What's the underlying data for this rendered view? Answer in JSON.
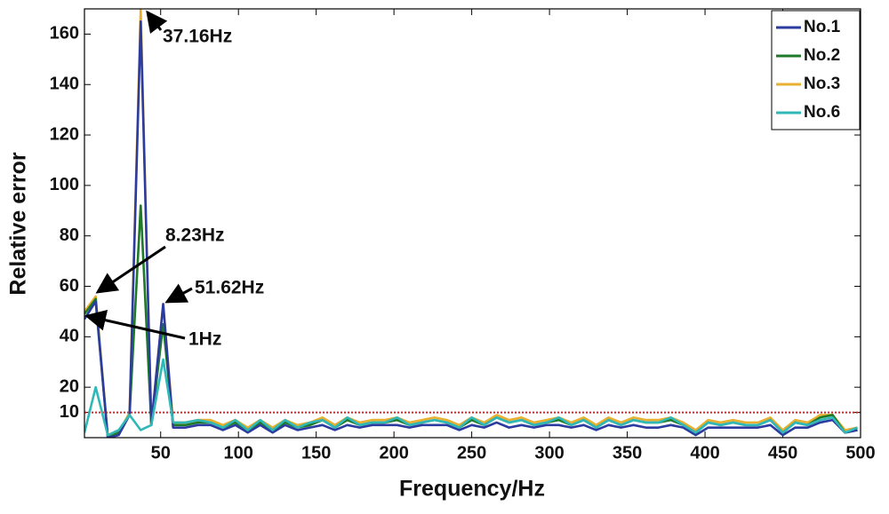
{
  "chart_data": {
    "type": "line",
    "x_label": "Frequency/Hz",
    "y_label": "Relative error",
    "xlim": [
      1,
      500
    ],
    "ylim": [
      0,
      170
    ],
    "xticks": [
      50,
      100,
      150,
      200,
      250,
      300,
      350,
      400,
      450,
      500
    ],
    "yticks": [
      10,
      20,
      40,
      60,
      80,
      100,
      120,
      140,
      160
    ],
    "legend": "upper right",
    "reference_line": {
      "value": 10,
      "color": "#e02020"
    },
    "x": [
      1,
      8.23,
      16,
      23,
      30,
      37.16,
      44,
      51.62,
      58,
      66,
      74,
      82,
      90,
      98,
      106,
      114,
      122,
      130,
      138,
      146,
      154,
      162,
      170,
      178,
      186,
      194,
      202,
      210,
      218,
      226,
      234,
      242,
      250,
      258,
      266,
      274,
      282,
      290,
      298,
      306,
      314,
      322,
      330,
      338,
      346,
      354,
      362,
      370,
      378,
      386,
      394,
      402,
      410,
      418,
      426,
      434,
      442,
      450,
      458,
      466,
      474,
      482,
      490,
      498
    ],
    "series": [
      {
        "name": "No.1",
        "color": "#2b3b9f",
        "values": [
          47,
          54,
          0,
          1,
          9,
          165,
          5,
          53,
          4,
          4,
          5,
          5,
          3,
          5,
          2,
          5,
          2,
          5,
          3,
          4,
          5,
          3,
          5,
          4,
          5,
          5,
          5,
          4,
          5,
          5,
          5,
          3,
          5,
          4,
          6,
          4,
          5,
          4,
          5,
          5,
          4,
          5,
          3,
          5,
          4,
          5,
          4,
          4,
          5,
          4,
          1,
          4,
          4,
          4,
          4,
          4,
          5,
          1,
          4,
          4,
          6,
          7,
          2,
          3
        ]
      },
      {
        "name": "No.2",
        "color": "#1e7a28",
        "values": [
          49,
          55,
          0,
          2,
          9,
          92,
          5,
          45,
          5,
          5,
          6,
          6,
          4,
          6,
          3,
          6,
          3,
          6,
          4,
          5,
          7,
          4,
          7,
          5,
          6,
          6,
          7,
          5,
          6,
          7,
          6,
          4,
          7,
          5,
          8,
          6,
          7,
          5,
          6,
          7,
          5,
          7,
          4,
          7,
          5,
          7,
          6,
          6,
          7,
          5,
          2,
          6,
          5,
          6,
          5,
          5,
          7,
          2,
          6,
          5,
          8,
          9,
          2,
          3
        ]
      },
      {
        "name": "No.3",
        "color": "#e8b030",
        "values": [
          50,
          56,
          1,
          2,
          10,
          170,
          5,
          53,
          6,
          6,
          7,
          7,
          5,
          7,
          4,
          7,
          4,
          7,
          5,
          6,
          8,
          5,
          8,
          6,
          7,
          7,
          8,
          6,
          7,
          8,
          7,
          5,
          8,
          6,
          9,
          7,
          8,
          6,
          7,
          8,
          6,
          8,
          5,
          8,
          6,
          8,
          7,
          7,
          8,
          6,
          3,
          7,
          6,
          7,
          6,
          6,
          8,
          3,
          7,
          6,
          9,
          9,
          3,
          4
        ]
      },
      {
        "name": "No.6",
        "color": "#30b8b8",
        "values": [
          2,
          20,
          1,
          3,
          9,
          3,
          5,
          31,
          6,
          6,
          7,
          6,
          4,
          7,
          3,
          7,
          3,
          7,
          4,
          6,
          7,
          4,
          8,
          5,
          6,
          6,
          8,
          5,
          6,
          7,
          6,
          4,
          8,
          5,
          8,
          6,
          7,
          5,
          6,
          8,
          5,
          7,
          4,
          7,
          5,
          7,
          6,
          6,
          8,
          5,
          2,
          6,
          5,
          6,
          5,
          5,
          7,
          2,
          6,
          5,
          7,
          8,
          2,
          4
        ]
      }
    ],
    "annotations": [
      "37.16Hz",
      "8.23Hz",
      "51.62Hz",
      "1Hz"
    ]
  }
}
